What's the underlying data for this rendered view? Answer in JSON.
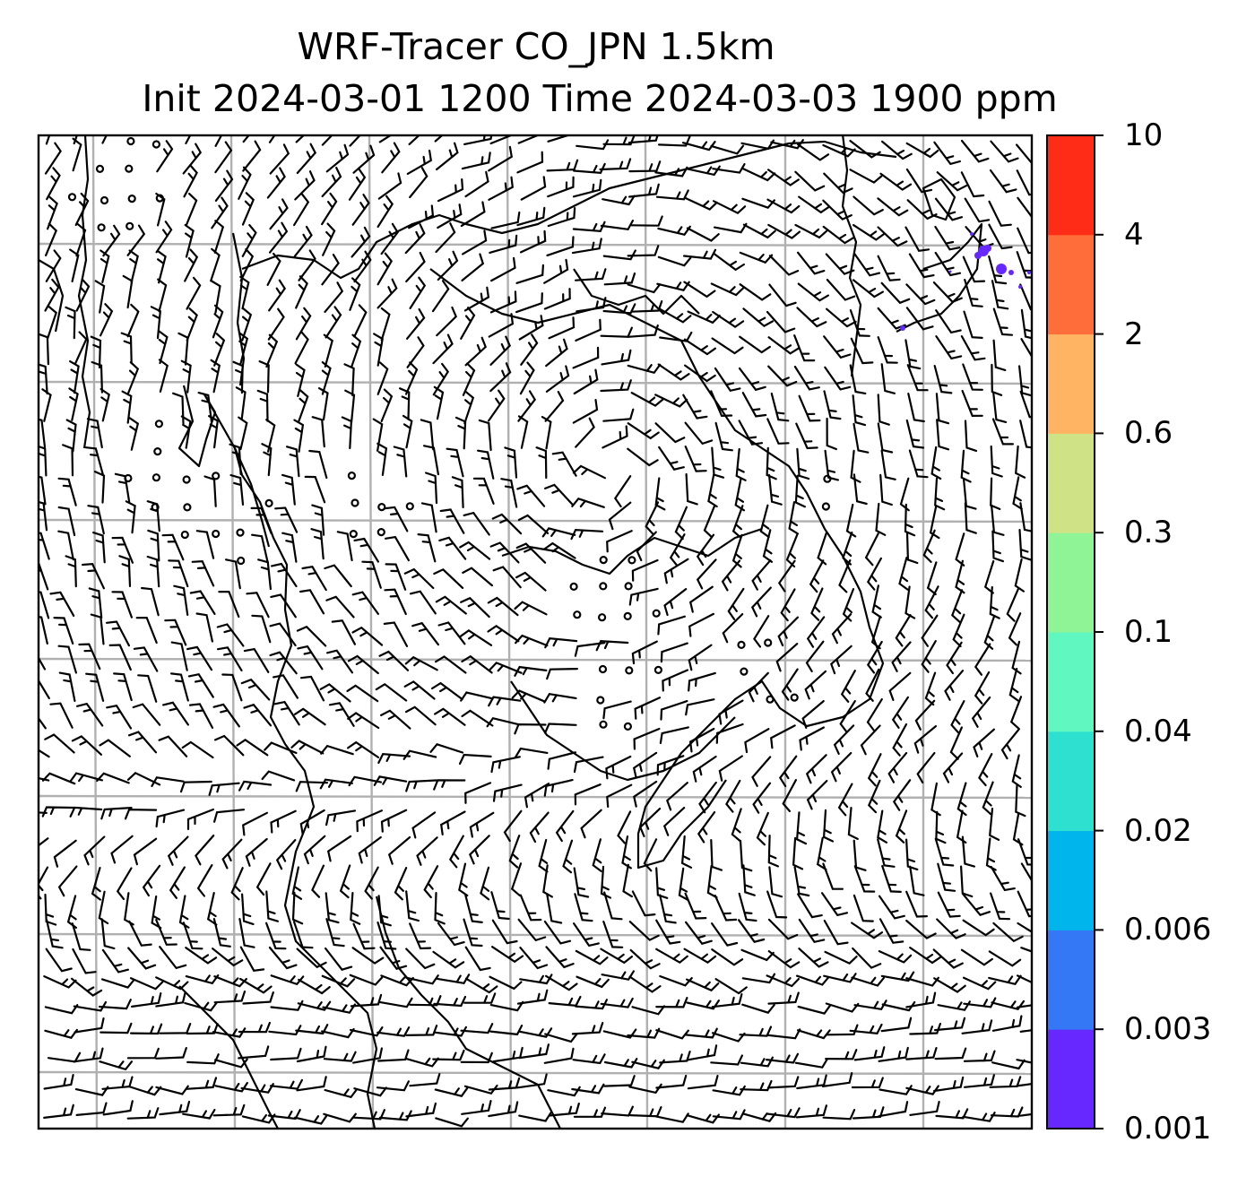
{
  "title": {
    "line1": "WRF-Tracer CO_JPN 1.5km",
    "line2": "Init 2024-03-01 1200 Time 2024-03-03 1900 ppm"
  },
  "colorbar": {
    "levels": [
      "0.001",
      "0.003",
      "0.006",
      "0.02",
      "0.04",
      "0.1",
      "0.3",
      "0.6",
      "2",
      "4",
      "10"
    ],
    "colors": [
      "#6628ff",
      "#3478f5",
      "#00b4ec",
      "#2ee0d0",
      "#60f7c0",
      "#8ef496",
      "#cfe285",
      "#ffb464",
      "#ff6d3a",
      "#ff2c18"
    ]
  },
  "map": {
    "gridlines": true,
    "tracer_color": "#6628ff",
    "barb_color": "#000000"
  }
}
